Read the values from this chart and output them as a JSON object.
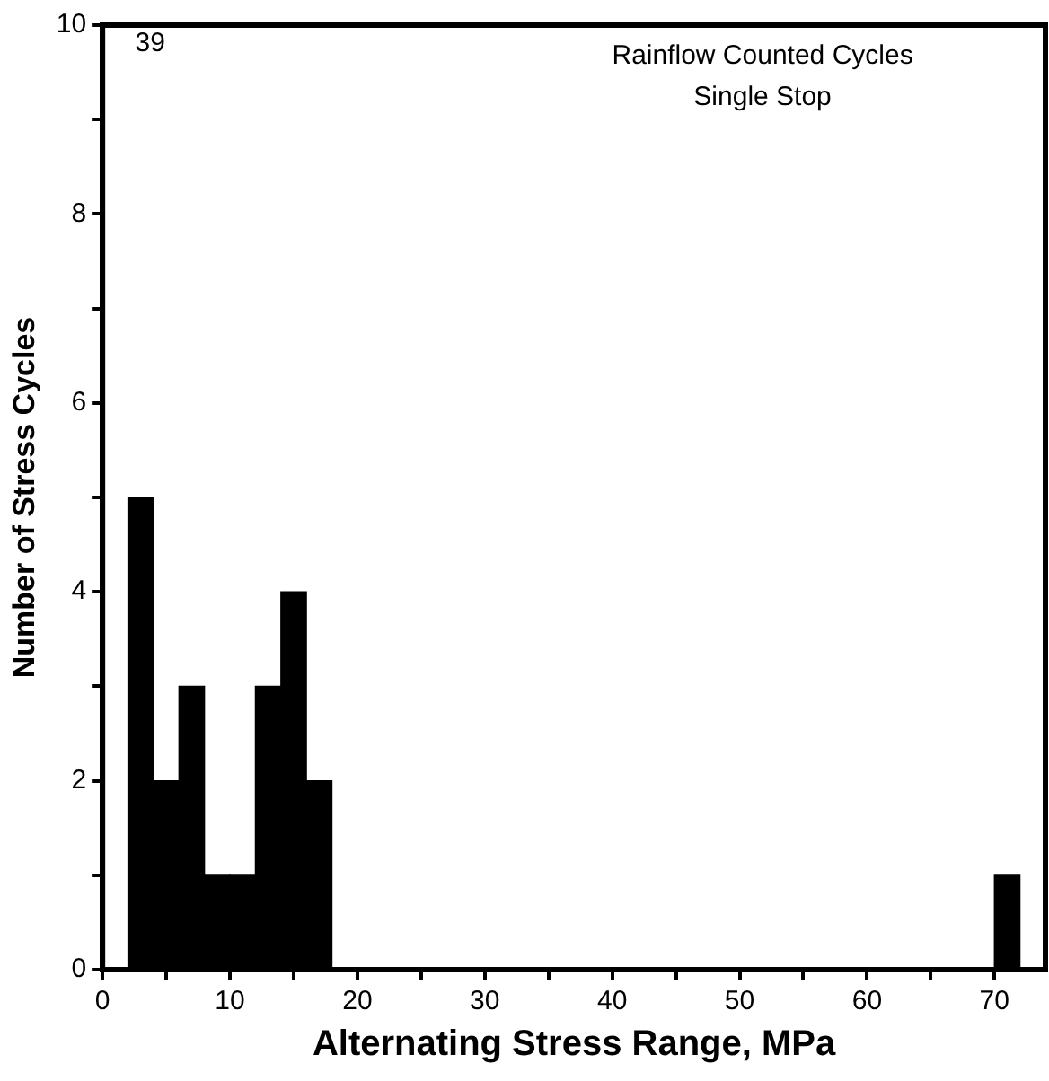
{
  "chart_data": {
    "type": "histogram",
    "xlabel": "Alternating Stress Range, MPa",
    "ylabel": "Number of Stress Cycles",
    "bins": [
      0,
      2,
      4,
      6,
      8,
      10,
      12,
      14,
      16,
      18,
      20,
      22,
      24,
      26,
      28,
      30,
      32,
      34,
      36,
      38,
      40,
      42,
      44,
      46,
      48,
      50,
      52,
      54,
      56,
      58,
      60,
      62,
      64,
      66,
      68,
      70,
      72
    ],
    "values": [
      null,
      5,
      2,
      3,
      1,
      1,
      3,
      4,
      2,
      0,
      0,
      0,
      0,
      0,
      0,
      0,
      0,
      0,
      0,
      0,
      0,
      0,
      0,
      0,
      0,
      0,
      0,
      0,
      0,
      0,
      0,
      0,
      0,
      0,
      0,
      1
    ],
    "value_labels": [
      "39",
      null,
      null,
      null,
      null,
      null,
      null,
      null,
      null,
      null,
      null,
      null,
      null,
      null,
      null,
      null,
      null,
      null,
      null,
      null,
      null,
      null,
      null,
      null,
      null,
      null,
      null,
      null,
      null,
      null,
      null,
      null,
      null,
      null,
      null,
      null
    ],
    "color": "#000000",
    "xlim": [
      0,
      74
    ],
    "xticks": [
      0,
      {
        "value": 5,
        "label": null
      },
      10,
      {
        "value": 15,
        "label": null
      },
      20,
      {
        "value": 25,
        "label": null
      },
      30,
      {
        "value": 35,
        "label": null
      },
      40,
      {
        "value": 45,
        "label": null
      },
      50,
      {
        "value": 55,
        "label": null
      },
      60,
      {
        "value": 65,
        "label": null
      },
      70
    ],
    "ylim": [
      0,
      10
    ],
    "yticks": [
      0,
      {
        "value": 1,
        "label": null
      },
      2,
      {
        "value": 3,
        "label": null
      },
      4,
      {
        "value": 5,
        "label": null
      },
      6,
      {
        "value": 7,
        "label": null
      },
      8,
      {
        "value": 9,
        "label": null
      },
      10
    ],
    "annotations": [
      "Rainflow Counted Cycles",
      "Single Stop"
    ],
    "grid": false,
    "legend": false
  }
}
